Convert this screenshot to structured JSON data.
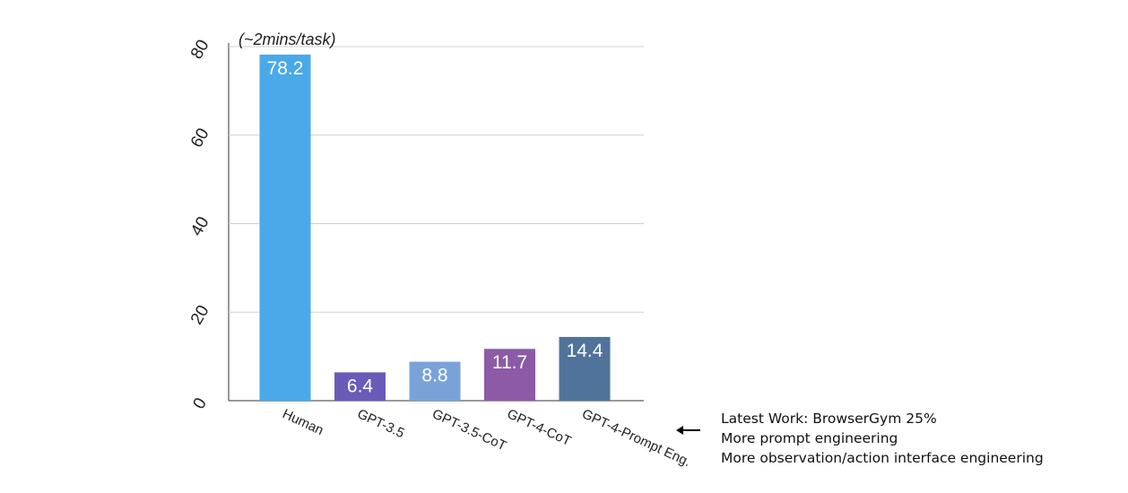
{
  "chart_data": {
    "type": "bar",
    "categories": [
      "Human",
      "GPT-3.5",
      "GPT-3.5-CoT",
      "GPT-4-CoT",
      "GPT-4-Prompt Eng."
    ],
    "values": [
      78.2,
      6.4,
      8.8,
      11.7,
      14.4
    ],
    "value_labels": [
      "78.2",
      "6.4",
      "8.8",
      "11.7",
      "14.4"
    ],
    "colors": [
      "#4aa9e8",
      "#6a5bb8",
      "#79a3d8",
      "#8c5aa6",
      "#50739b"
    ],
    "ylim": [
      0,
      80
    ],
    "yticks": [
      "0",
      "20",
      "40",
      "60",
      "80"
    ],
    "grid": true,
    "title": "",
    "xlabel": "",
    "ylabel": ""
  },
  "top_note": "(~2mins/task)",
  "annotation": {
    "lines": [
      "Latest Work: BrowserGym 25%",
      "More prompt engineering",
      "More observation/action interface engineering"
    ]
  }
}
